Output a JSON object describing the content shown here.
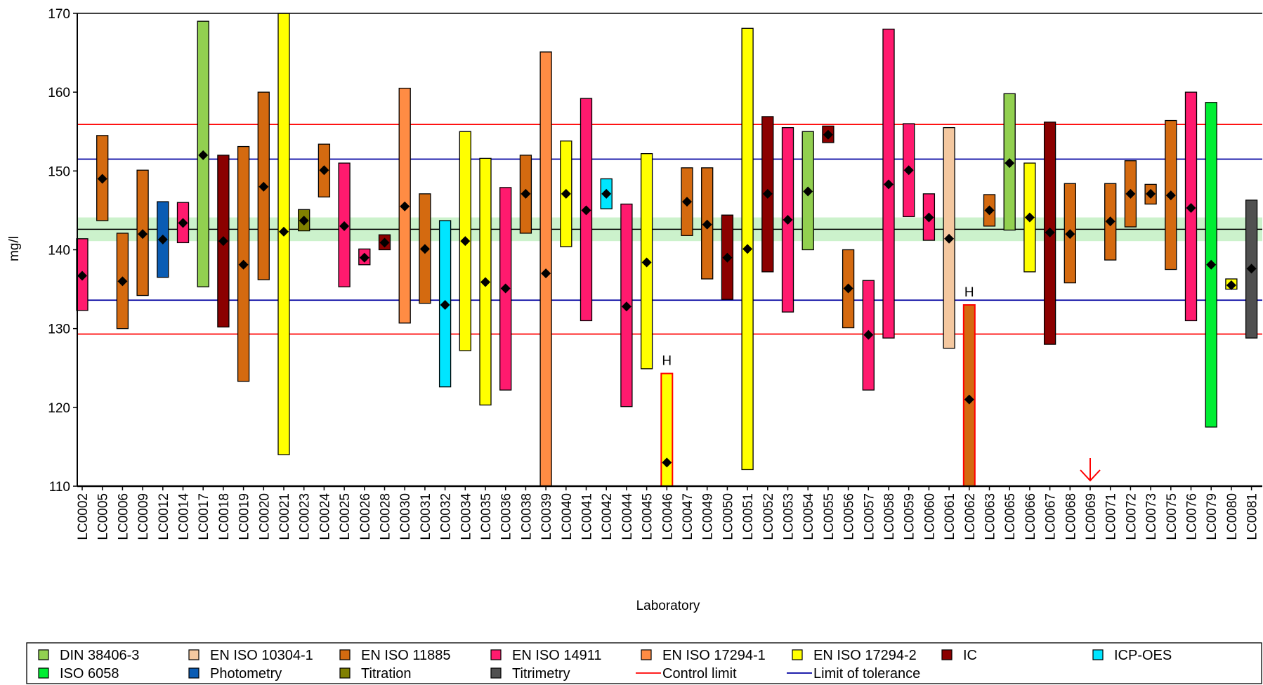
{
  "chart_data": {
    "type": "range-bar",
    "xlabel": "Laboratory",
    "ylabel": "mg/l",
    "ylim": [
      110,
      170
    ],
    "yticks": [
      110,
      120,
      130,
      140,
      150,
      160,
      170
    ],
    "reference_lines": {
      "assigned_value": 142.6,
      "assigned_band": [
        141.1,
        144.1
      ],
      "upper_tolerance": 151.5,
      "lower_tolerance": 133.6,
      "upper_control": 155.9,
      "lower_control": 129.3
    },
    "colors": {
      "DIN 38406-3": "#92d050",
      "EN ISO 10304-1": "#f4c8a0",
      "EN ISO 11885": "#d46a10",
      "EN ISO 14911": "#ff1a6e",
      "EN ISO 17294-1": "#ff8c44",
      "EN ISO 17294-2": "#ffff00",
      "IC": "#8b0000",
      "ICP-OES": "#00e5ff",
      "ISO 6058": "#00ee33",
      "Photometry": "#0a5cb4",
      "Titration": "#808000",
      "Titrimetry": "#505050",
      "control_line": "#ff0000",
      "tolerance_line": "#0000a0",
      "assigned_band": "#ccf2cc",
      "assigned_line": "#000000"
    },
    "labs": [
      {
        "id": "LC0002",
        "method": "EN ISO 14911",
        "low": 132.3,
        "high": 141.4,
        "value": 136.7
      },
      {
        "id": "LC0005",
        "method": "EN ISO 11885",
        "low": 143.7,
        "high": 154.5,
        "value": 149.0
      },
      {
        "id": "LC0006",
        "method": "EN ISO 11885",
        "low": 130.0,
        "high": 142.1,
        "value": 136.0
      },
      {
        "id": "LC0009",
        "method": "EN ISO 11885",
        "low": 134.2,
        "high": 150.1,
        "value": 142.0
      },
      {
        "id": "LC0012",
        "method": "Photometry",
        "low": 136.5,
        "high": 146.1,
        "value": 141.3
      },
      {
        "id": "LC0014",
        "method": "EN ISO 14911",
        "low": 140.9,
        "high": 146.0,
        "value": 143.4
      },
      {
        "id": "LC0017",
        "method": "DIN 38406-3",
        "low": 135.3,
        "high": 169.0,
        "value": 152.0
      },
      {
        "id": "LC0018",
        "method": "IC",
        "low": 130.2,
        "high": 152.0,
        "value": 141.1
      },
      {
        "id": "LC0019",
        "method": "EN ISO 11885",
        "low": 123.3,
        "high": 153.1,
        "value": 138.1
      },
      {
        "id": "LC0020",
        "method": "EN ISO 11885",
        "low": 136.2,
        "high": 160.0,
        "value": 148.0
      },
      {
        "id": "LC0021",
        "method": "EN ISO 17294-2",
        "low": 114.0,
        "high": 170.0,
        "value": 142.3
      },
      {
        "id": "LC0023",
        "method": "Titration",
        "low": 142.4,
        "high": 145.1,
        "value": 143.7
      },
      {
        "id": "LC0024",
        "method": "EN ISO 11885",
        "low": 146.7,
        "high": 153.4,
        "value": 150.1
      },
      {
        "id": "LC0025",
        "method": "EN ISO 14911",
        "low": 135.3,
        "high": 151.0,
        "value": 143.0
      },
      {
        "id": "LC0026",
        "method": "EN ISO 14911",
        "low": 138.1,
        "high": 140.1,
        "value": 139.0
      },
      {
        "id": "LC0028",
        "method": "IC",
        "low": 140.0,
        "high": 141.9,
        "value": 140.9
      },
      {
        "id": "LC0030",
        "method": "EN ISO 17294-1",
        "low": 130.7,
        "high": 160.5,
        "value": 145.5
      },
      {
        "id": "LC0031",
        "method": "EN ISO 11885",
        "low": 133.2,
        "high": 147.1,
        "value": 140.1
      },
      {
        "id": "LC0032",
        "method": "ICP-OES",
        "low": 122.6,
        "high": 143.7,
        "value": 133.0
      },
      {
        "id": "LC0034",
        "method": "EN ISO 17294-2",
        "low": 127.2,
        "high": 155.0,
        "value": 141.1
      },
      {
        "id": "LC0035",
        "method": "EN ISO 17294-2",
        "low": 120.3,
        "high": 151.6,
        "value": 135.9
      },
      {
        "id": "LC0036",
        "method": "EN ISO 14911",
        "low": 122.2,
        "high": 147.9,
        "value": 135.1
      },
      {
        "id": "LC0038",
        "method": "EN ISO 11885",
        "low": 142.1,
        "high": 152.0,
        "value": 147.1
      },
      {
        "id": "LC0039",
        "method": "EN ISO 17294-1",
        "low": 110.0,
        "high": 165.1,
        "value": 137.0
      },
      {
        "id": "LC0040",
        "method": "EN ISO 17294-2",
        "low": 140.4,
        "high": 153.8,
        "value": 147.1
      },
      {
        "id": "LC0041",
        "method": "EN ISO 14911",
        "low": 131.0,
        "high": 159.2,
        "value": 145.0
      },
      {
        "id": "LC0042",
        "method": "ICP-OES",
        "low": 145.2,
        "high": 149.0,
        "value": 147.1
      },
      {
        "id": "LC0044",
        "method": "EN ISO 14911",
        "low": 120.1,
        "high": 145.8,
        "value": 132.8
      },
      {
        "id": "LC0045",
        "method": "EN ISO 17294-2",
        "low": 124.9,
        "high": 152.2,
        "value": 138.4
      },
      {
        "id": "LC0046",
        "method": "EN ISO 17294-2",
        "low": 110.0,
        "high": 124.3,
        "value": 113.0,
        "flag": "H",
        "outlier": true
      },
      {
        "id": "LC0047",
        "method": "EN ISO 11885",
        "low": 141.8,
        "high": 150.4,
        "value": 146.1
      },
      {
        "id": "LC0049",
        "method": "EN ISO 11885",
        "low": 136.3,
        "high": 150.4,
        "value": 143.2
      },
      {
        "id": "LC0050",
        "method": "IC",
        "low": 133.7,
        "high": 144.4,
        "value": 139.0
      },
      {
        "id": "LC0051",
        "method": "EN ISO 17294-2",
        "low": 112.1,
        "high": 168.1,
        "value": 140.1
      },
      {
        "id": "LC0052",
        "method": "IC",
        "low": 137.2,
        "high": 156.9,
        "value": 147.1
      },
      {
        "id": "LC0053",
        "method": "EN ISO 14911",
        "low": 132.1,
        "high": 155.5,
        "value": 143.8
      },
      {
        "id": "LC0054",
        "method": "DIN 38406-3",
        "low": 140.0,
        "high": 155.0,
        "value": 147.4
      },
      {
        "id": "LC0055",
        "method": "IC",
        "low": 153.6,
        "high": 155.7,
        "value": 154.6
      },
      {
        "id": "LC0056",
        "method": "EN ISO 11885",
        "low": 130.1,
        "high": 140.0,
        "value": 135.1
      },
      {
        "id": "LC0057",
        "method": "EN ISO 14911",
        "low": 122.2,
        "high": 136.1,
        "value": 129.2
      },
      {
        "id": "LC0058",
        "method": "EN ISO 14911",
        "low": 128.8,
        "high": 168.0,
        "value": 148.3
      },
      {
        "id": "LC0059",
        "method": "EN ISO 14911",
        "low": 144.2,
        "high": 156.0,
        "value": 150.1
      },
      {
        "id": "LC0060",
        "method": "EN ISO 14911",
        "low": 141.2,
        "high": 147.1,
        "value": 144.1
      },
      {
        "id": "LC0061",
        "method": "EN ISO 10304-1",
        "low": 127.5,
        "high": 155.5,
        "value": 141.4
      },
      {
        "id": "LC0062",
        "method": "EN ISO 11885",
        "low": 110.0,
        "high": 133.0,
        "value": 121.0,
        "flag": "H",
        "outlier": true
      },
      {
        "id": "LC0063",
        "method": "EN ISO 11885",
        "low": 143.0,
        "high": 147.0,
        "value": 145.0
      },
      {
        "id": "LC0065",
        "method": "DIN 38406-3",
        "low": 142.5,
        "high": 159.8,
        "value": 151.0
      },
      {
        "id": "LC0066",
        "method": "EN ISO 17294-2",
        "low": 137.2,
        "high": 151.0,
        "value": 144.1
      },
      {
        "id": "LC0067",
        "method": "IC",
        "low": 128.0,
        "high": 156.2,
        "value": 142.2
      },
      {
        "id": "LC0068",
        "method": "EN ISO 11885",
        "low": 135.8,
        "high": 148.4,
        "value": 142.0
      },
      {
        "id": "LC0069",
        "method": null,
        "low": null,
        "high": null,
        "value": null,
        "below_range": true
      },
      {
        "id": "LC0071",
        "method": "EN ISO 11885",
        "low": 138.7,
        "high": 148.4,
        "value": 143.6
      },
      {
        "id": "LC0072",
        "method": "EN ISO 11885",
        "low": 142.9,
        "high": 151.3,
        "value": 147.1
      },
      {
        "id": "LC0073",
        "method": "EN ISO 11885",
        "low": 145.8,
        "high": 148.3,
        "value": 147.1
      },
      {
        "id": "LC0075",
        "method": "EN ISO 11885",
        "low": 137.5,
        "high": 156.4,
        "value": 146.9
      },
      {
        "id": "LC0076",
        "method": "EN ISO 14911",
        "low": 131.0,
        "high": 160.0,
        "value": 145.3
      },
      {
        "id": "LC0079",
        "method": "ISO 6058",
        "low": 117.5,
        "high": 158.7,
        "value": 138.1
      },
      {
        "id": "LC0080",
        "method": "EN ISO 17294-2",
        "low": 135.0,
        "high": 136.3,
        "value": 135.5
      },
      {
        "id": "LC0081",
        "method": "Titrimetry",
        "low": 128.8,
        "high": 146.3,
        "value": 137.6
      }
    ],
    "legend": [
      {
        "label": "DIN 38406-3",
        "kind": "box"
      },
      {
        "label": "EN ISO 10304-1",
        "kind": "box"
      },
      {
        "label": "EN ISO 11885",
        "kind": "box"
      },
      {
        "label": "EN ISO 14911",
        "kind": "box"
      },
      {
        "label": "EN ISO 17294-1",
        "kind": "box"
      },
      {
        "label": "EN ISO 17294-2",
        "kind": "box"
      },
      {
        "label": "IC",
        "kind": "box"
      },
      {
        "label": "ICP-OES",
        "kind": "box"
      },
      {
        "label": "ISO 6058",
        "kind": "box"
      },
      {
        "label": "Photometry",
        "kind": "box"
      },
      {
        "label": "Titration",
        "kind": "box"
      },
      {
        "label": "Titrimetry",
        "kind": "box"
      },
      {
        "label": "Control limit",
        "kind": "line",
        "colorKey": "control_line"
      },
      {
        "label": "Limit of tolerance",
        "kind": "line",
        "colorKey": "tolerance_line"
      }
    ]
  }
}
